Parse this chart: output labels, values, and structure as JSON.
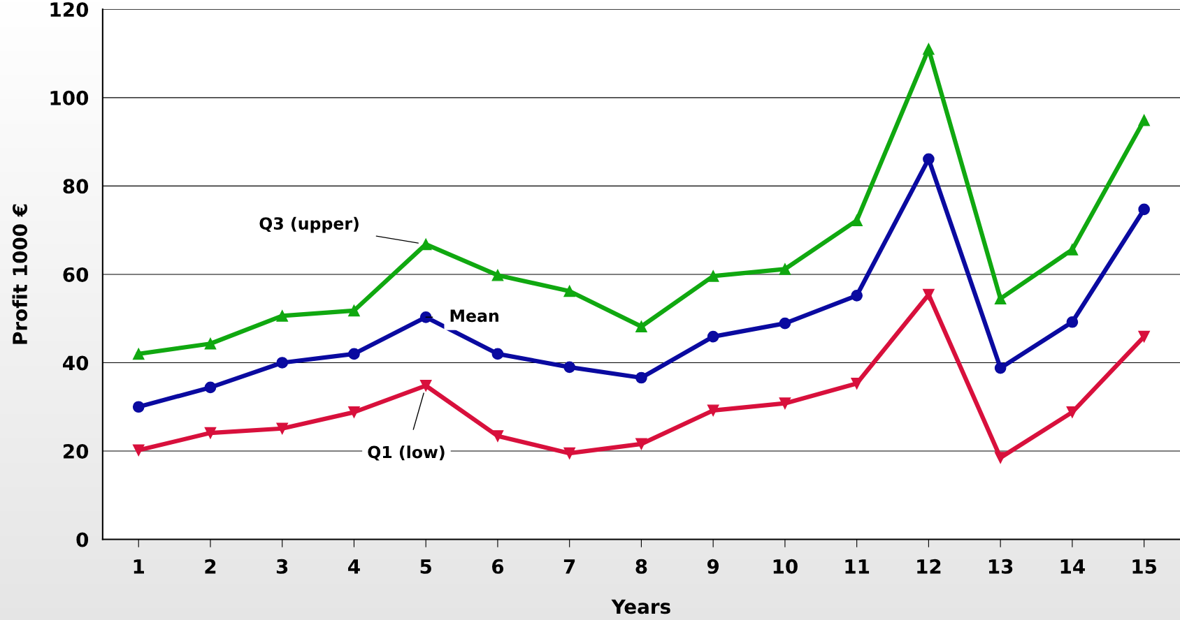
{
  "chart_data": {
    "type": "line",
    "xlabel": "Years",
    "ylabel": "Profit 1000 €",
    "categories": [
      "1",
      "2",
      "3",
      "4",
      "5",
      "6",
      "7",
      "8",
      "9",
      "10",
      "11",
      "12",
      "13",
      "14",
      "15"
    ],
    "ylim": [
      0,
      120
    ],
    "yticks": [
      0,
      20,
      40,
      60,
      80,
      100,
      120
    ],
    "grid": "y",
    "legend": false,
    "line_style": "solid",
    "series": [
      {
        "name": "Q3 (upper)",
        "color": "#10a810",
        "marker": "triangle",
        "values": [
          42,
          44.3,
          50.6,
          51.8,
          66.8,
          59.8,
          56.2,
          48.2,
          59.6,
          61.2,
          72.2,
          111,
          54.5,
          65.6,
          94.9
        ]
      },
      {
        "name": "Mean",
        "color": "#0a0aa0",
        "marker": "circle",
        "values": [
          30,
          34.4,
          40,
          42,
          50.3,
          42,
          39,
          36.6,
          45.9,
          48.9,
          55.2,
          86.1,
          38.8,
          49.2,
          74.7
        ]
      },
      {
        "name": "Q1 (low)",
        "color": "#d8103c",
        "marker": "triangle_down",
        "values": [
          20.2,
          24.1,
          25.1,
          28.8,
          34.8,
          23.4,
          19.5,
          21.6,
          29.2,
          30.8,
          35.3,
          55.4,
          18.5,
          28.8,
          45.9
        ]
      }
    ]
  }
}
